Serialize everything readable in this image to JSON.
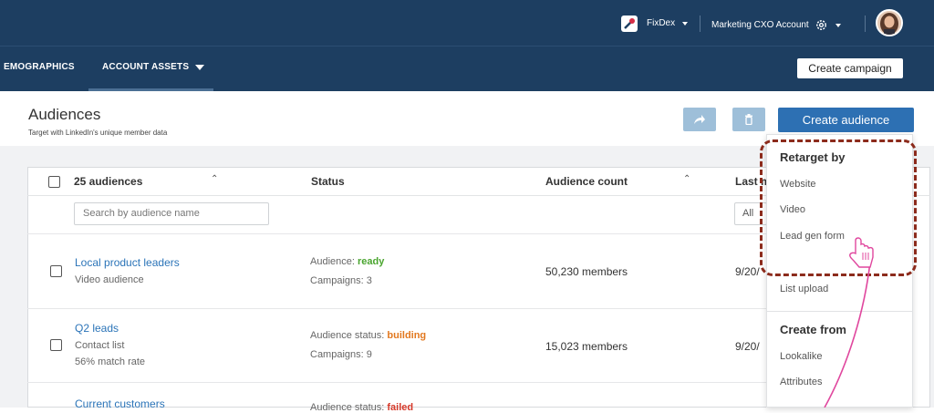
{
  "topbar": {
    "org_name": "FixDex",
    "account_name": "Marketing CXO Account",
    "colors": {
      "bar": "#1d3e61"
    }
  },
  "nav": {
    "items": [
      {
        "label": "EMOGRAPHICS"
      },
      {
        "label": "ACCOUNT ASSETS"
      }
    ],
    "create_campaign": "Create campaign"
  },
  "page": {
    "title": "Audiences",
    "subtitle": "Target with LinkedIn's unique member data",
    "create_audience": "Create audience"
  },
  "table": {
    "headers": {
      "name": "25 audiences",
      "status": "Status",
      "count": "Audience count",
      "last": "Last m"
    },
    "search_placeholder": "Search by audience name",
    "filter_value": "All",
    "rows": [
      {
        "name": "Local product leaders",
        "meta1": "Video audience",
        "status_prefix": "Audience: ",
        "status_value": "ready",
        "campaigns": "Campaigns: 3",
        "count": "50,230 members",
        "date": "9/20/"
      },
      {
        "name": "Q2 leads",
        "meta1": "Contact list",
        "meta2": "56% match rate",
        "status_prefix": "Audience status: ",
        "status_value": "building",
        "campaigns": "Campaigns: 9",
        "count": "15,023 members",
        "date": "9/20/"
      },
      {
        "name": "Current customers",
        "status_prefix": "Audience status: ",
        "status_value": "failed"
      }
    ]
  },
  "menu": {
    "retarget_heading": "Retarget by",
    "retarget_items": [
      "Website",
      "Video",
      "Lead gen form",
      "List upload"
    ],
    "create_heading": "Create from",
    "create_items": [
      "Lookalike",
      "Attributes"
    ]
  },
  "accent_colors": {
    "primary": "#2d70b3",
    "link": "#2b74b8",
    "ready": "#4aa52f",
    "building": "#e2781f",
    "annotation": "#8c2b1c",
    "arrow": "#e0479e"
  }
}
